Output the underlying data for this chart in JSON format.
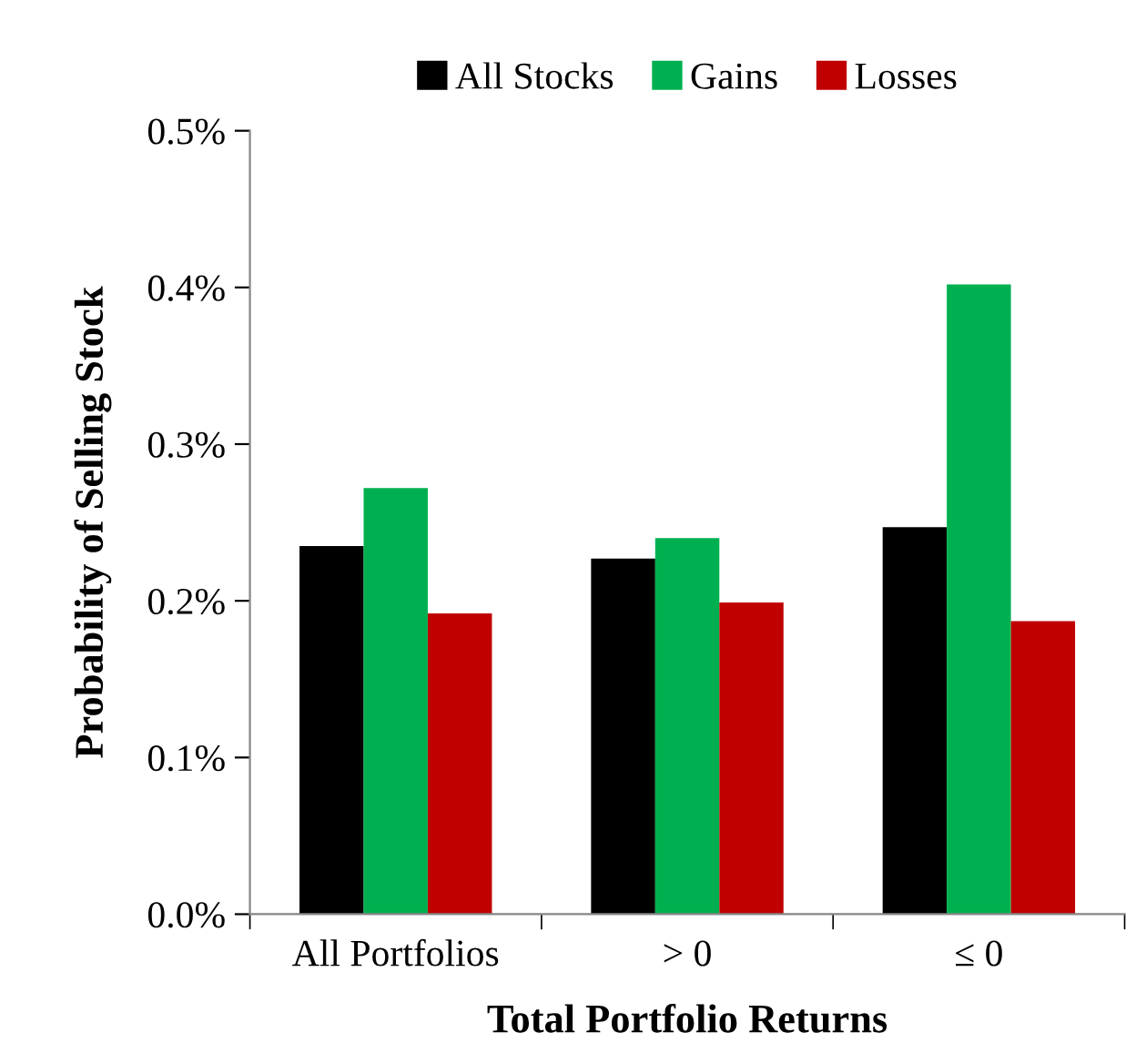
{
  "chart_data": {
    "type": "bar",
    "xlabel": "Total Portfolio Returns",
    "ylabel": "Probability of Selling Stock",
    "categories": [
      "All Portfolios",
      "> 0",
      "≤ 0"
    ],
    "series": [
      {
        "name": "All Stocks",
        "color": "#000000",
        "values": [
          0.235,
          0.227,
          0.247
        ]
      },
      {
        "name": "Gains",
        "color": "#00b050",
        "values": [
          0.272,
          0.24,
          0.402
        ]
      },
      {
        "name": "Losses",
        "color": "#c00000",
        "values": [
          0.192,
          0.199,
          0.187
        ]
      }
    ],
    "ylim": [
      0,
      0.5
    ],
    "yticks": [
      {
        "value": 0,
        "label": "0.0%"
      },
      {
        "value": 0.1,
        "label": "0.1%"
      },
      {
        "value": 0.2,
        "label": "0.2%"
      },
      {
        "value": 0.3,
        "label": "0.3%"
      },
      {
        "value": 0.4,
        "label": "0.4%"
      },
      {
        "value": 0.5,
        "label": "0.5%"
      }
    ],
    "grid": false,
    "legend": "top"
  }
}
